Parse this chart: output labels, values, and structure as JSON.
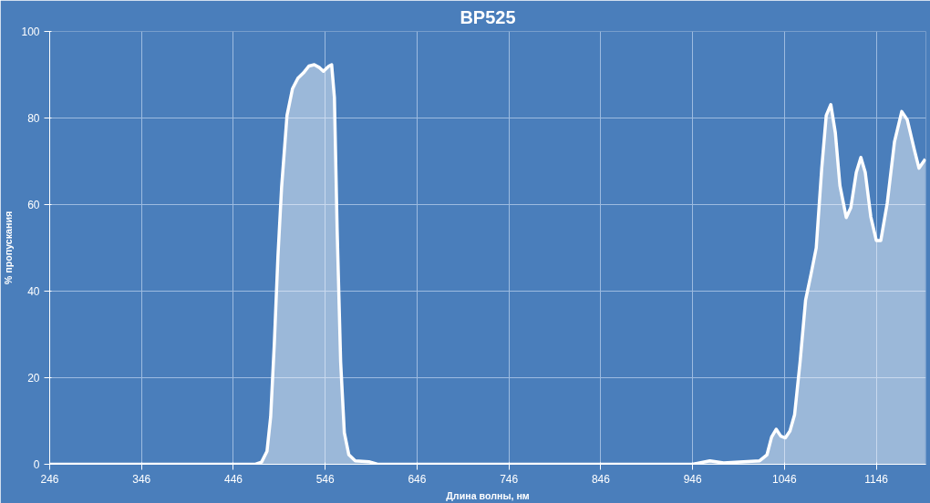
{
  "chart_data": {
    "type": "area",
    "title": "BP525",
    "xlabel": "Длина волны, нм",
    "ylabel": "% пропускания",
    "xlim": [
      246,
      1200
    ],
    "xticks": [
      246,
      346,
      446,
      546,
      646,
      746,
      846,
      946,
      1046,
      1146
    ],
    "ylim": [
      0,
      100
    ],
    "yticks": [
      0,
      20,
      40,
      60,
      80,
      100
    ],
    "grid": true,
    "series": [
      {
        "color": "#ffffff",
        "x": [
          246,
          470,
          476.7,
          482.6,
          486.6,
          490.6,
          494.5,
          498.5,
          504.4,
          510.4,
          516.3,
          522.2,
          528.2,
          534.1,
          540,
          544,
          550,
          553,
          556,
          559,
          562.8,
          566.8,
          571.7,
          578.7,
          593.5,
          603,
          800,
          946,
          964.8,
          979.7,
          1019,
          1027,
          1032,
          1037,
          1042,
          1047,
          1052,
          1057,
          1063,
          1069,
          1075,
          1080.6,
          1086.6,
          1091.5,
          1096.5,
          1101.4,
          1106.4,
          1113.3,
          1118.3,
          1124.2,
          1129.2,
          1134,
          1140,
          1146,
          1150.9,
          1157.9,
          1165.8,
          1173.7,
          1179.7,
          1187.6,
          1192.5,
          1199.4
        ],
        "values": [
          0,
          0,
          0.5,
          3,
          11,
          28,
          48,
          64,
          80.6,
          86.8,
          89.2,
          90.4,
          92,
          92.3,
          91.6,
          90.8,
          92,
          92.3,
          84.7,
          54,
          23.6,
          7.3,
          2.2,
          0.8,
          0.6,
          0,
          0,
          0,
          0.8,
          0.3,
          0.8,
          2.2,
          6.3,
          8.1,
          6.5,
          6.1,
          7.7,
          11.4,
          23.6,
          37.9,
          44,
          50,
          68.4,
          80.6,
          83.1,
          76.6,
          64.4,
          57,
          59.3,
          67.4,
          70.9,
          67.4,
          57.2,
          51.7,
          51.7,
          60.3,
          74.5,
          81.5,
          79.6,
          72.5,
          68.4,
          70.5
        ]
      }
    ]
  }
}
